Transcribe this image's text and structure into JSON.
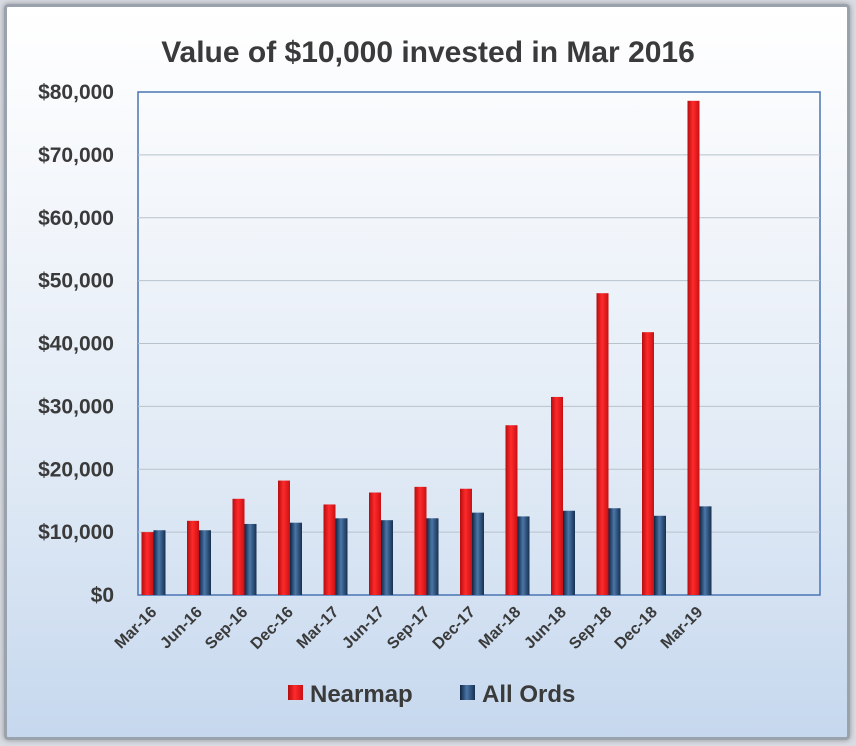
{
  "chart_data": {
    "type": "bar",
    "title": "Value of $10,000 invested in Mar 2016",
    "categories": [
      "Mar-16",
      "Jun-16",
      "Sep-16",
      "Dec-16",
      "Mar-17",
      "Jun-17",
      "Sep-17",
      "Dec-17",
      "Mar-18",
      "Jun-18",
      "Sep-18",
      "Dec-18",
      "Mar-19"
    ],
    "series": [
      {
        "name": "Nearmap",
        "color": "#e8161b",
        "values": [
          10000,
          11800,
          15300,
          18200,
          14400,
          16300,
          17200,
          16900,
          27000,
          31500,
          48000,
          41800,
          78600
        ]
      },
      {
        "name": "All Ords",
        "color": "#24476e",
        "values": [
          10300,
          10300,
          11300,
          11500,
          12200,
          11900,
          12200,
          13100,
          12500,
          13400,
          13800,
          12600,
          14100
        ]
      }
    ],
    "ylim": [
      0,
      80000
    ],
    "yticks": [
      0,
      10000,
      20000,
      30000,
      40000,
      50000,
      60000,
      70000,
      80000
    ],
    "ytick_labels": [
      "$0",
      "$10,000",
      "$20,000",
      "$30,000",
      "$40,000",
      "$50,000",
      "$60,000",
      "$70,000",
      "$80,000"
    ],
    "grid": true,
    "legend_position": "bottom"
  }
}
